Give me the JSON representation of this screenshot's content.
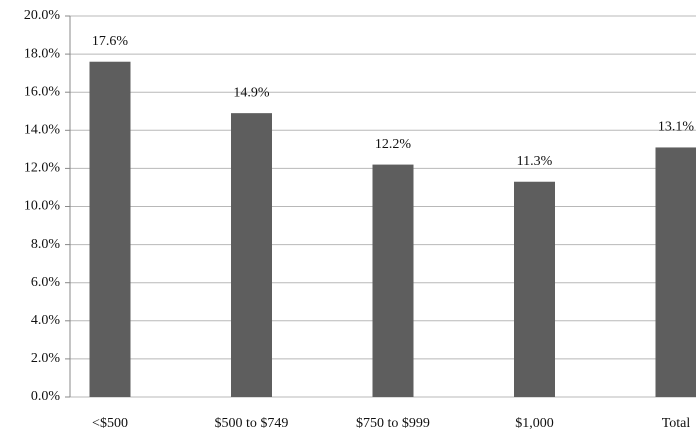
{
  "chart_data": {
    "type": "bar",
    "categories": [
      "<$500",
      "$500 to $749",
      "$750 to $999",
      "$1,000",
      "Total"
    ],
    "values": [
      17.6,
      14.9,
      12.2,
      11.3,
      13.1
    ],
    "value_labels": [
      "17.6%",
      "14.9%",
      "12.2%",
      "11.3%",
      "13.1%"
    ],
    "color": "#5e5e5e",
    "ylim": [
      0,
      20
    ],
    "yticks": [
      {
        "value": 0,
        "label": "0.0%"
      },
      {
        "value": 2,
        "label": "2.0%"
      },
      {
        "value": 4,
        "label": "4.0%"
      },
      {
        "value": 6,
        "label": "6.0%"
      },
      {
        "value": 8,
        "label": "8.0%"
      },
      {
        "value": 10,
        "label": "10.0%"
      },
      {
        "value": 12,
        "label": "12.0%"
      },
      {
        "value": 14,
        "label": "14.0%"
      },
      {
        "value": 16,
        "label": "16.0%"
      },
      {
        "value": 18,
        "label": "18.0%"
      },
      {
        "value": 20,
        "label": "20.0%"
      }
    ],
    "grid": true
  }
}
